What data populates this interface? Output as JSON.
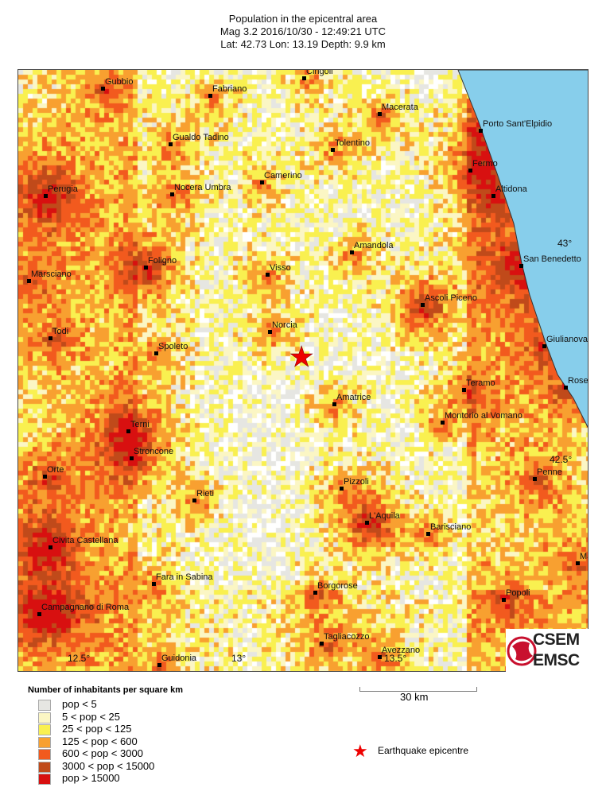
{
  "header": {
    "title": "Population in the epicentral area",
    "line2": "Mag 3.2  2016/10/30 - 12:49:21 UTC",
    "line3": "Lat: 42.73    Lon:  13.19     Depth:  9.9 km"
  },
  "event": {
    "magnitude": 3.2,
    "date": "2016/10/30",
    "time": "12:49:21 UTC",
    "lat": 42.73,
    "lon": 13.19,
    "depth_km": 9.9
  },
  "cities": [
    "Gubbio",
    "Fabriano",
    "Cingoli",
    "Macerata",
    "Porto Sant'Elpidio",
    "Gualdo Tadino",
    "Tolentino",
    "Fermo",
    "Camerino",
    "Perugia",
    "Nocera Umbra",
    "Altidona",
    "Amandola",
    "San Benedetto",
    "Foligno",
    "Visso",
    "Marsciano",
    "Ascoli Piceno",
    "Norcia",
    "Todi",
    "Giulianova",
    "Spoleto",
    "Teramo",
    "Rose",
    "Amatrice",
    "Montorio al Vomano",
    "Terni",
    "Stroncone",
    "Orte",
    "Penne",
    "Pizzoli",
    "Rieti",
    "L'Aquila",
    "Barisciano",
    "Civita Castellana",
    "Ma",
    "Fara in Sabina",
    "Borgorose",
    "Popoli",
    "Campagnano di Roma",
    "Tagliacozzo",
    "Avezzano",
    "Guidonia"
  ],
  "graticule": [
    "43°",
    "42.5°",
    "12.5°",
    "13°",
    "13.5°"
  ],
  "logo": {
    "top": "CSEM",
    "bottom": "EMSC"
  },
  "legend": {
    "title": "Number of inhabitants per square km",
    "items": [
      {
        "label": "pop < 5",
        "color": "#e6e6e2"
      },
      {
        "label": "5 < pop < 25",
        "color": "#fbf6c4"
      },
      {
        "label": "25 < pop < 125",
        "color": "#f9f050"
      },
      {
        "label": "125 < pop < 600",
        "color": "#f8a030"
      },
      {
        "label": "600 < pop < 3000",
        "color": "#f25a1e"
      },
      {
        "label": "3000 < pop < 15000",
        "color": "#c04a1a"
      },
      {
        "label": "pop > 15000",
        "color": "#d81010"
      }
    ]
  },
  "scale": {
    "label": "30 km"
  },
  "epicentre": {
    "label": "Earthquake epicentre",
    "icon": "star-icon",
    "color": "#e00000"
  },
  "sea_color": "#87ceeb"
}
